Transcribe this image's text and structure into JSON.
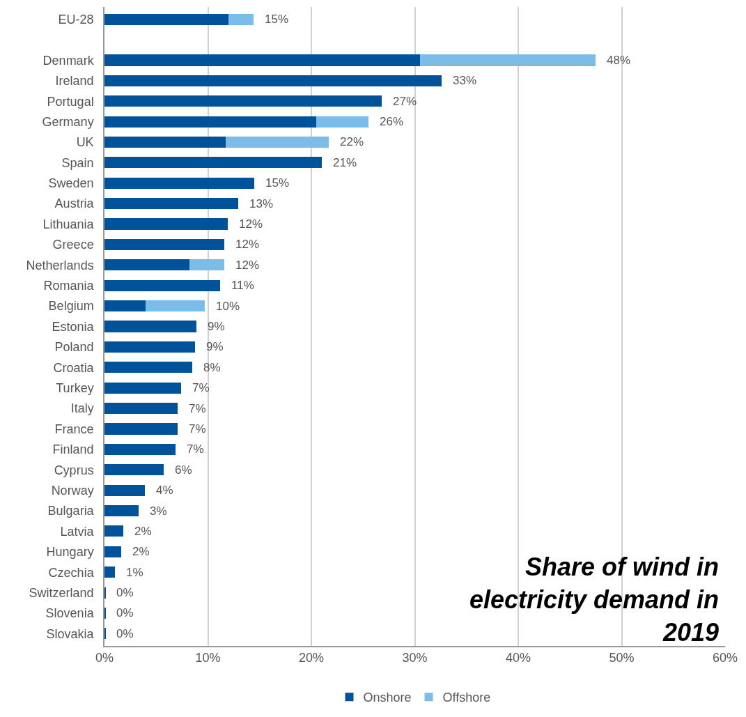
{
  "chart_data": {
    "type": "bar",
    "orientation": "horizontal",
    "stacked": true,
    "title": "Share of wind in\nelectricity demand in\n2019",
    "categories": [
      "EU-28",
      null,
      "Denmark",
      "Ireland",
      "Portugal",
      "Germany",
      "UK",
      "Spain",
      "Sweden",
      "Austria",
      "Lithuania",
      "Greece",
      "Netherlands",
      "Romania",
      "Belgium",
      "Estonia",
      "Poland",
      "Croatia",
      "Turkey",
      "Italy",
      "France",
      "Finland",
      "Cyprus",
      "Norway",
      "Bulgaria",
      "Latvia",
      "Hungary",
      "Czechia",
      "Switzerland",
      "Slovenia",
      "Slovakia"
    ],
    "series": [
      {
        "name": "Onshore",
        "color": "#00529b",
        "values": [
          12.0,
          null,
          30.5,
          32.6,
          26.8,
          20.5,
          11.7,
          21.0,
          14.5,
          12.9,
          11.9,
          11.6,
          8.2,
          11.2,
          4.0,
          8.9,
          8.75,
          8.5,
          7.4,
          7.1,
          7.1,
          6.9,
          5.7,
          3.9,
          3.3,
          1.8,
          1.6,
          1.0,
          0.1,
          0.1,
          0.1
        ]
      },
      {
        "name": "Offshore",
        "color": "#7bbde8",
        "values": [
          2.4,
          null,
          17.0,
          null,
          null,
          5.0,
          10.0,
          null,
          null,
          null,
          null,
          null,
          3.4,
          null,
          5.7,
          null,
          null,
          null,
          null,
          null,
          null,
          null,
          null,
          null,
          null,
          null,
          null,
          null,
          null,
          null,
          null
        ]
      }
    ],
    "value_labels": [
      "15%",
      null,
      "48%",
      "33%",
      "27%",
      "26%",
      "22%",
      "21%",
      "15%",
      "13%",
      "12%",
      "12%",
      "12%",
      "11%",
      "10%",
      "9%",
      "9%",
      "8%",
      "7%",
      "7%",
      "7%",
      "7%",
      "6%",
      "4%",
      "3%",
      "2%",
      "2%",
      "1%",
      "0%",
      "0%",
      "0%"
    ],
    "xlim": [
      0,
      60
    ],
    "xticks": [
      {
        "value": 0,
        "label": "0%"
      },
      {
        "value": 10,
        "label": "10%"
      },
      {
        "value": 20,
        "label": "20%"
      },
      {
        "value": 30,
        "label": "30%"
      },
      {
        "value": 40,
        "label": "40%"
      },
      {
        "value": 50,
        "label": "50%"
      },
      {
        "value": 60,
        "label": "60%"
      }
    ],
    "grid": "x",
    "legend": "bottom"
  }
}
